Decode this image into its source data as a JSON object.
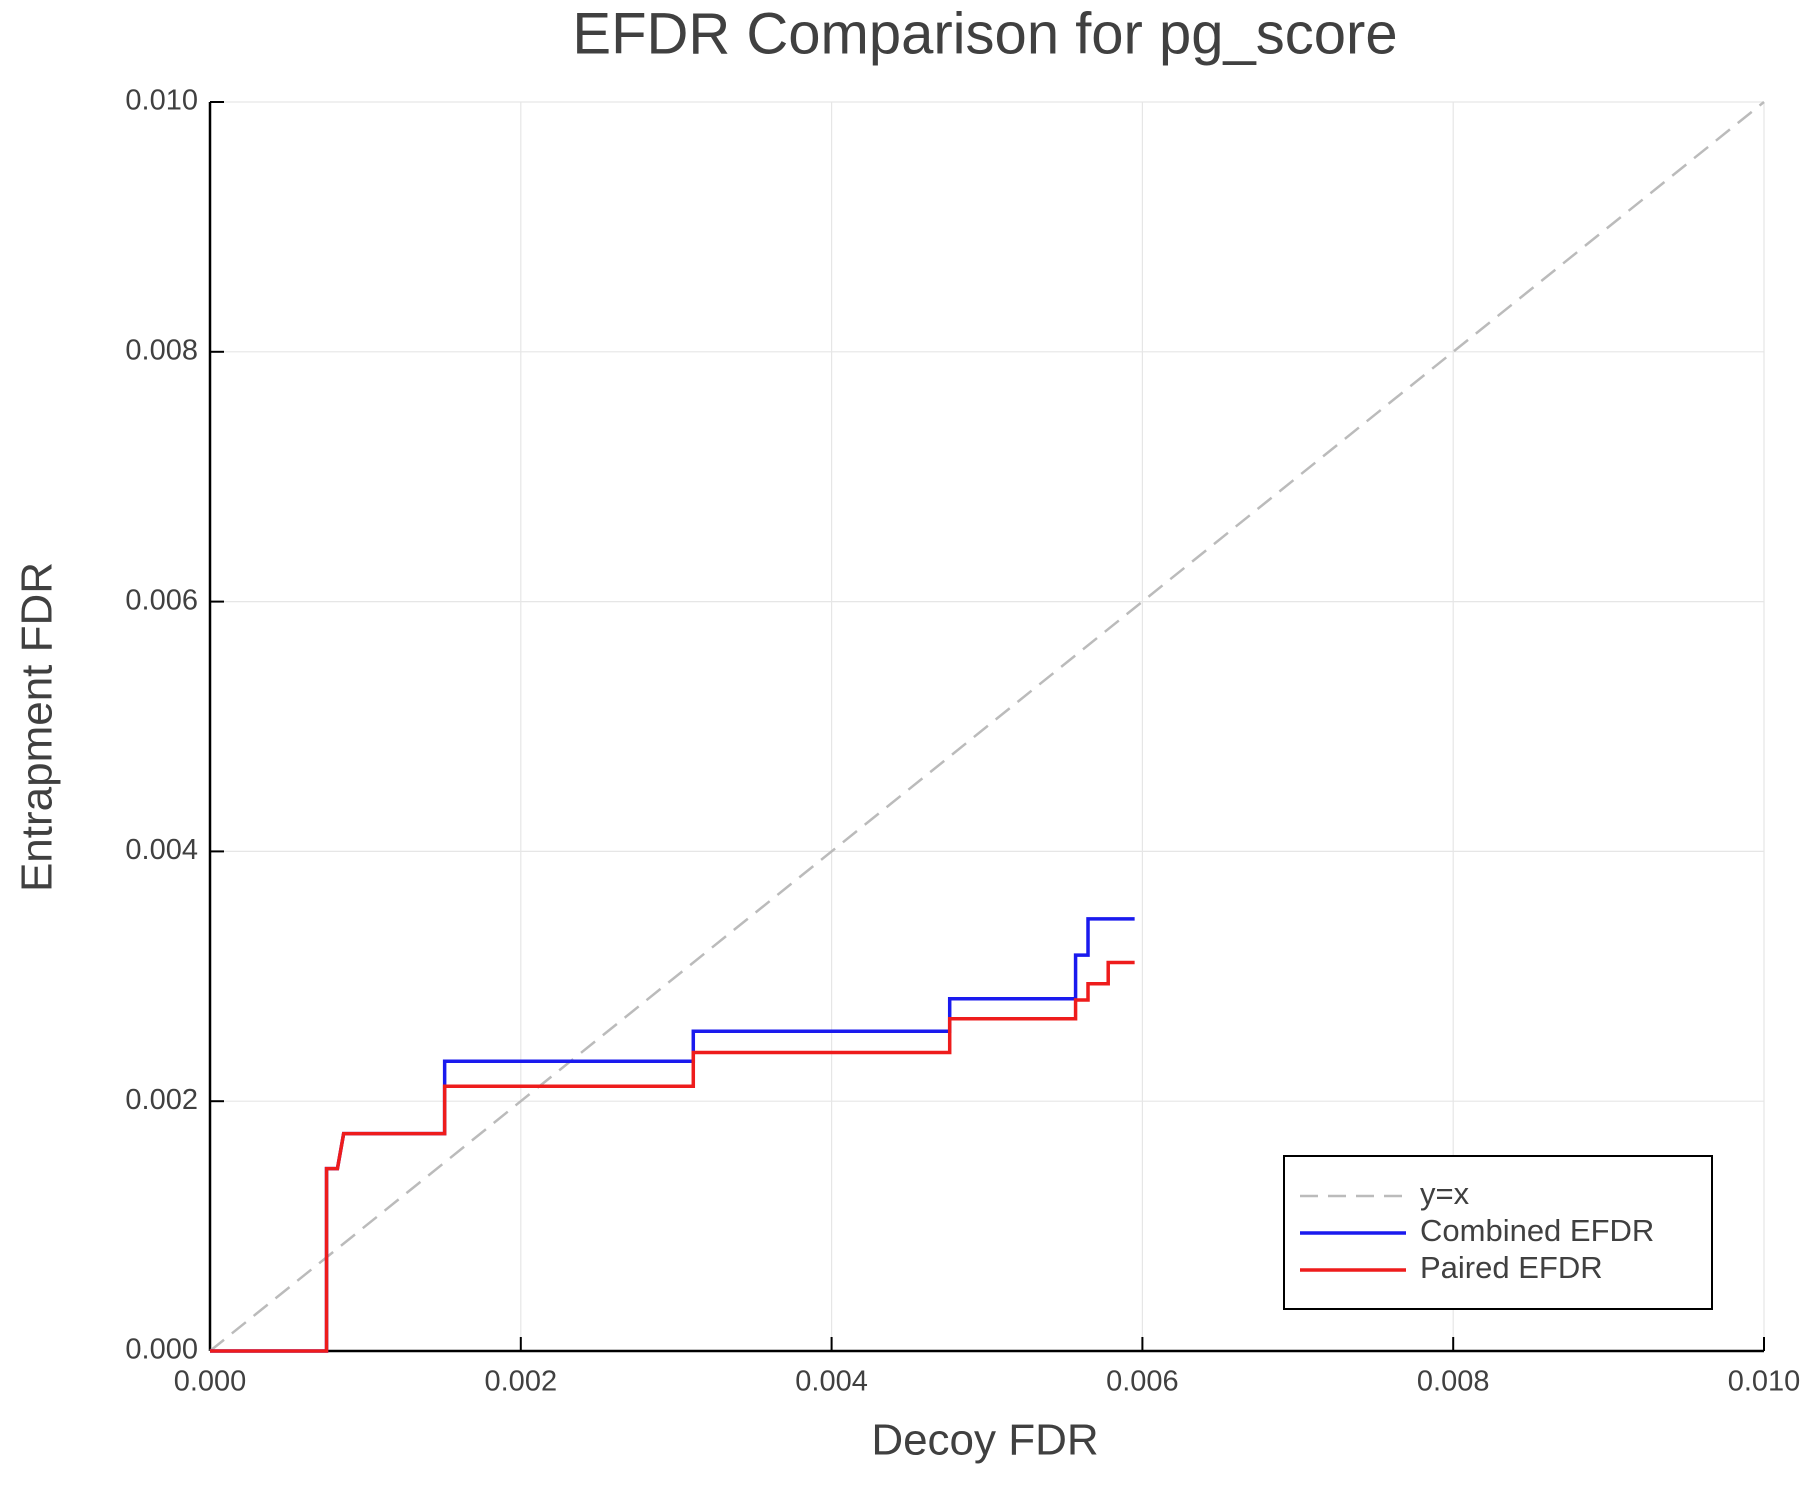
{
  "chart_data": {
    "type": "line",
    "title": "EFDR Comparison for pg_score",
    "x_label": "Decoy FDR",
    "y_label": "Entrapment FDR",
    "xlim": [
      0,
      0.01
    ],
    "ylim": [
      0,
      0.01
    ],
    "xticks": [
      {
        "value": 0,
        "label": "0.000"
      },
      {
        "value": 0.002,
        "label": "0.002"
      },
      {
        "value": 0.004,
        "label": "0.004"
      },
      {
        "value": 0.006,
        "label": "0.006"
      },
      {
        "value": 0.008,
        "label": "0.008"
      },
      {
        "value": 0.01,
        "label": "0.010"
      }
    ],
    "yticks": [
      {
        "value": 0,
        "label": "0.000"
      },
      {
        "value": 0.002,
        "label": "0.002"
      },
      {
        "value": 0.004,
        "label": "0.004"
      },
      {
        "value": 0.006,
        "label": "0.006"
      },
      {
        "value": 0.008,
        "label": "0.008"
      },
      {
        "value": 0.01,
        "label": "0.010"
      }
    ],
    "grid": true,
    "legend": "bottom right",
    "series": [
      {
        "name": "y=x",
        "color": "#bbbbbb",
        "line_style": "dashed",
        "x": [
          0,
          0.01
        ],
        "values": [
          0,
          0.01
        ]
      },
      {
        "name": "Combined EFDR",
        "color": "#1a1aee",
        "line_style": "solid",
        "x": [
          0,
          0.00075,
          0.00075,
          0.00082,
          0.00086,
          0.00151,
          0.00151,
          0.00311,
          0.00311,
          0.00476,
          0.00476,
          0.00557,
          0.00557,
          0.00565,
          0.00565,
          0.00595
        ],
        "values": [
          0,
          0,
          0.00146,
          0.00146,
          0.00174,
          0.00174,
          0.00232,
          0.00232,
          0.00256,
          0.00256,
          0.00282,
          0.00282,
          0.00317,
          0.00317,
          0.00346,
          0.00346
        ]
      },
      {
        "name": "Paired EFDR",
        "color": "#ee1c1c",
        "line_style": "solid",
        "x": [
          0,
          0.00075,
          0.00075,
          0.00082,
          0.00086,
          0.00151,
          0.00151,
          0.00311,
          0.00311,
          0.00476,
          0.00476,
          0.00557,
          0.00557,
          0.00565,
          0.00565,
          0.00578,
          0.00578,
          0.00595
        ],
        "values": [
          0,
          0,
          0.00146,
          0.00146,
          0.00174,
          0.00174,
          0.00212,
          0.00212,
          0.00239,
          0.00239,
          0.00266,
          0.00266,
          0.00281,
          0.00281,
          0.00294,
          0.00294,
          0.00311,
          0.00311
        ]
      }
    ]
  }
}
